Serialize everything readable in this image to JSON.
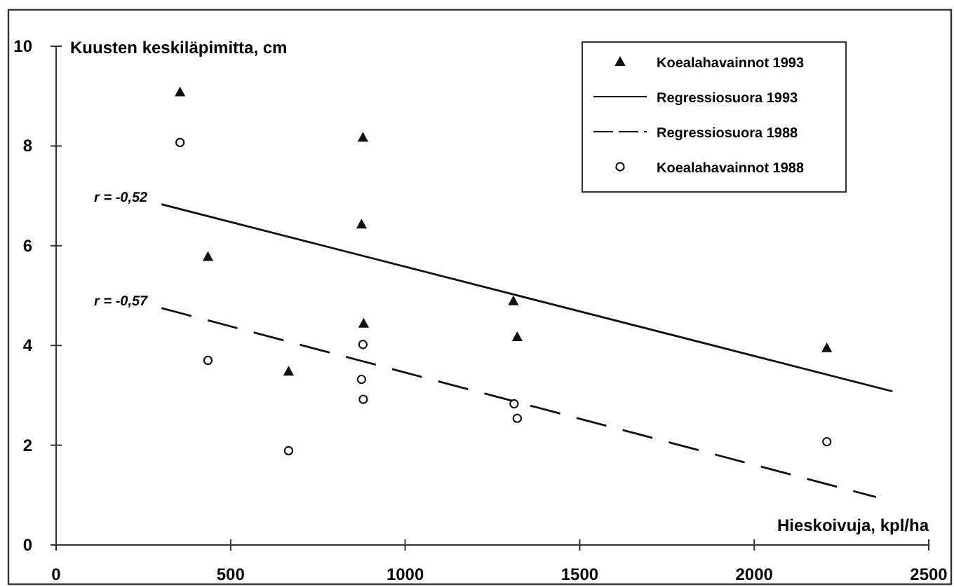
{
  "chart_data": {
    "type": "scatter",
    "xlabel": "Hieskoivuja, kpl/ha",
    "ylabel": "Kuusten keskiläpimitta, cm",
    "xlim": [
      0,
      2500
    ],
    "xticks": [
      0,
      500,
      1000,
      1500,
      2000,
      2500
    ],
    "ylim": [
      0,
      10
    ],
    "yticks": [
      0,
      2,
      4,
      6,
      8,
      10
    ],
    "legend": "top right",
    "series": [
      {
        "name": "Koealahavainnot 1993",
        "marker": "triangle",
        "color": "#111111",
        "x": [
          355,
          435,
          879,
          875,
          881,
          666,
          1310,
          1321,
          2208
        ],
        "values": [
          9.08,
          5.78,
          8.17,
          6.43,
          4.44,
          3.48,
          4.89,
          4.17,
          3.95
        ]
      },
      {
        "name": "Regressiosuora 1993",
        "type": "line",
        "marker": "none",
        "line_style": "solid",
        "color": "#111111",
        "x": [
          302,
          2396
        ],
        "values": [
          6.83,
          3.08
        ]
      },
      {
        "name": "Regressiosuora 1988",
        "type": "line",
        "marker": "none",
        "line_style": "dashed",
        "color": "#111111",
        "x": [
          302,
          2349
        ],
        "values": [
          4.75,
          0.96
        ]
      },
      {
        "name": "Koealahavainnot 1988",
        "marker": "circle",
        "color": "#111111",
        "x": [
          355,
          435,
          666,
          879,
          875,
          880,
          1312,
          1321,
          2208
        ],
        "values": [
          8.07,
          3.7,
          1.89,
          4.02,
          3.32,
          2.92,
          2.83,
          2.54,
          2.07
        ]
      }
    ],
    "annotations": [
      {
        "text": "r = -0,52",
        "x": 302,
        "y": 6.83
      },
      {
        "text": "r = -0,57",
        "x": 302,
        "y": 4.75
      }
    ]
  }
}
